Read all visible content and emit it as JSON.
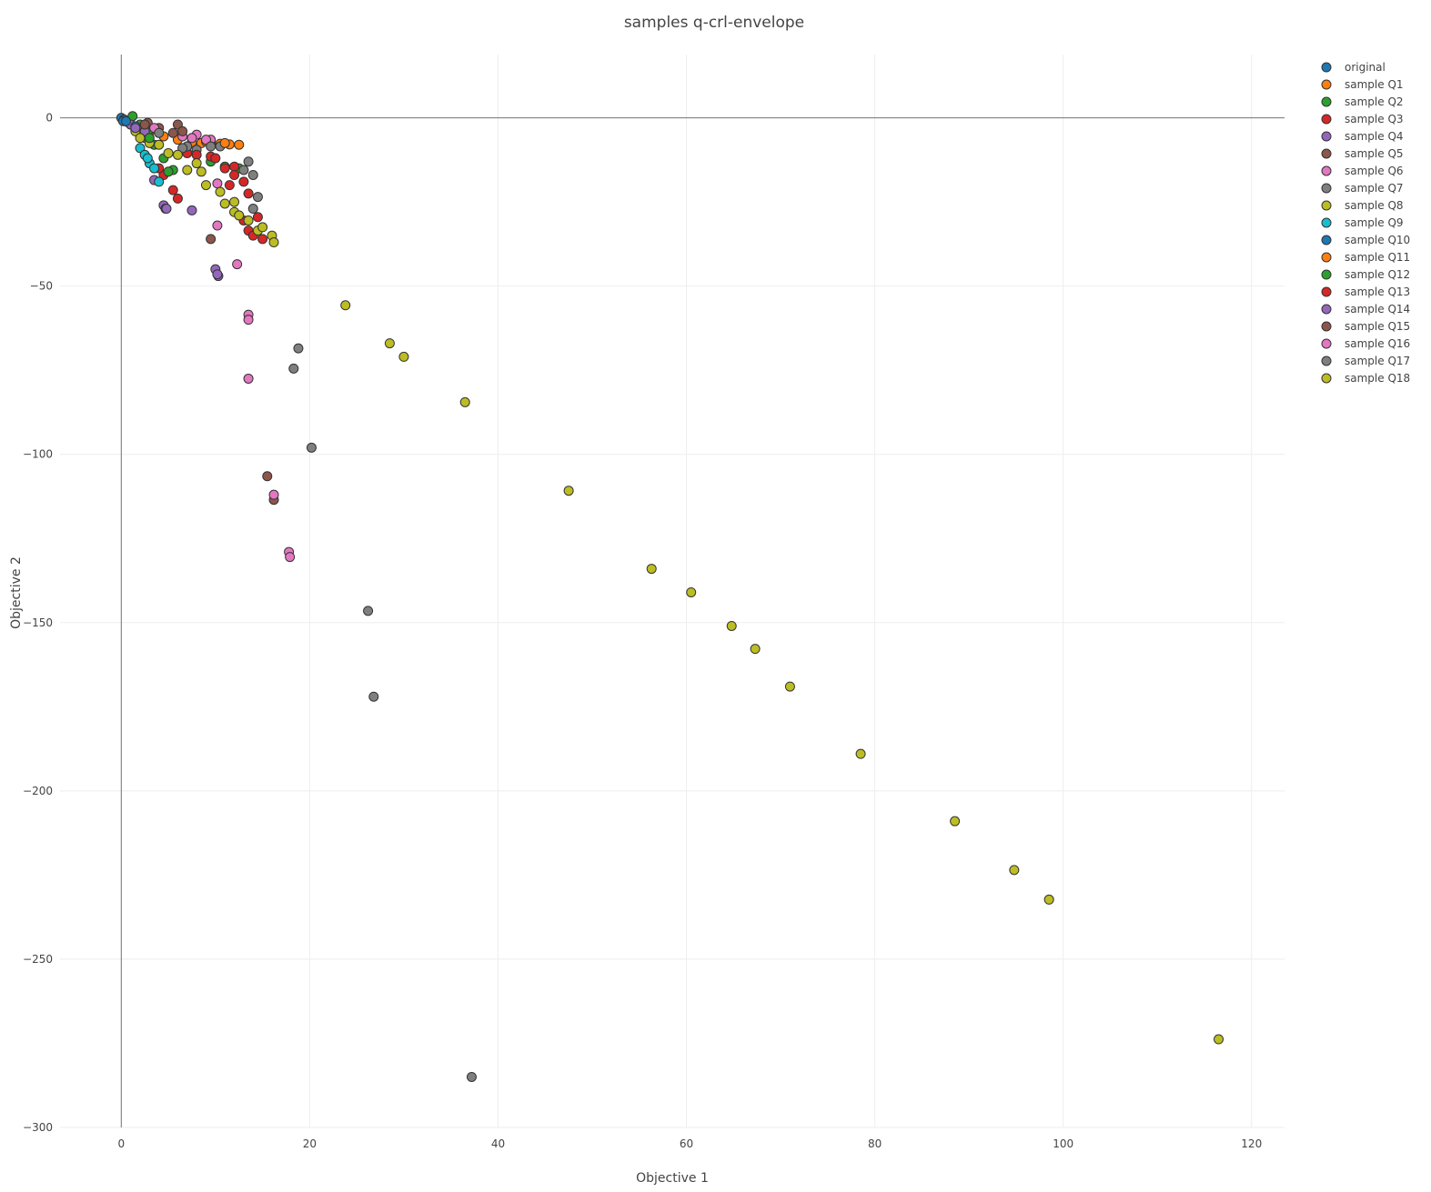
{
  "chart_data": {
    "type": "scatter",
    "title": "samples q-crl-envelope",
    "xlabel": "Objective 1",
    "ylabel": "Objective 2",
    "xlim": [
      -6.5,
      123.5
    ],
    "ylim": [
      -300,
      18.8
    ],
    "xticks": [
      0,
      20,
      40,
      60,
      80,
      100,
      120
    ],
    "yticks": [
      0,
      -50,
      -100,
      -150,
      -200,
      -250,
      -300
    ],
    "xtick_labels": [
      "0",
      "20",
      "40",
      "60",
      "80",
      "100",
      "120"
    ],
    "ytick_labels": [
      "0",
      "−50",
      "−100",
      "−150",
      "−200",
      "−250",
      "−300"
    ],
    "grid": true,
    "legend_position": "top-right",
    "series": [
      {
        "name": "original",
        "color": "#1f77b4",
        "points": [
          [
            0,
            0
          ],
          [
            0.3,
            -0.5
          ],
          [
            0.6,
            -1.2
          ],
          [
            1.0,
            -2.0
          ],
          [
            0.2,
            -1.0
          ]
        ]
      },
      {
        "name": "sample Q1",
        "color": "#ff7f0e",
        "points": [
          [
            8.5,
            -7.5
          ],
          [
            10.5,
            -7.7
          ],
          [
            11.5,
            -7.9
          ],
          [
            12.5,
            -8.0
          ],
          [
            9.5,
            -7.6
          ],
          [
            7.5,
            -7.2
          ],
          [
            6.0,
            -6.5
          ],
          [
            4.5,
            -5.5
          ],
          [
            3.0,
            -4.2
          ],
          [
            1.8,
            -3.0
          ]
        ]
      },
      {
        "name": "sample Q2",
        "color": "#2ca02c",
        "points": [
          [
            1.2,
            0.5
          ],
          [
            2.0,
            -2.0
          ],
          [
            3.0,
            -3.5
          ],
          [
            4.5,
            -12.0
          ],
          [
            5.5,
            -15.5
          ],
          [
            3.5,
            -8.0
          ],
          [
            2.5,
            -6.0
          ],
          [
            9.5,
            -13.0
          ],
          [
            11.0,
            -14.5
          ],
          [
            12.5,
            -15.0
          ]
        ]
      },
      {
        "name": "sample Q3",
        "color": "#d62728",
        "points": [
          [
            6.0,
            -24.0
          ],
          [
            5.5,
            -21.5
          ],
          [
            4.5,
            -17.0
          ],
          [
            4.0,
            -15.0
          ],
          [
            7.0,
            -10.5
          ],
          [
            9.5,
            -11.5
          ],
          [
            11.0,
            -15.0
          ],
          [
            11.5,
            -20.0
          ],
          [
            13.0,
            -19.0
          ],
          [
            13.5,
            -22.5
          ],
          [
            13.5,
            -33.5
          ],
          [
            14.0,
            -35.0
          ],
          [
            15.0,
            -36.0
          ],
          [
            13.0,
            -30.5
          ],
          [
            14.5,
            -29.5
          ],
          [
            12.0,
            -14.5
          ],
          [
            10.0,
            -12.0
          ]
        ]
      },
      {
        "name": "sample Q4",
        "color": "#9467bd",
        "points": [
          [
            3.5,
            -18.5
          ],
          [
            4.5,
            -26.0
          ],
          [
            4.7,
            -27.0
          ],
          [
            7.5,
            -27.5
          ],
          [
            10.0,
            -45.0
          ],
          [
            10.3,
            -47.0
          ],
          [
            10.2,
            -46.5
          ],
          [
            2.5,
            -4.0
          ],
          [
            1.0,
            -2.0
          ]
        ]
      },
      {
        "name": "sample Q5",
        "color": "#8c564b",
        "points": [
          [
            2.8,
            -1.5
          ],
          [
            6.0,
            -2.0
          ],
          [
            9.5,
            -36.0
          ],
          [
            15.5,
            -106.5
          ],
          [
            16.2,
            -113.5
          ],
          [
            5.5,
            -4.5
          ],
          [
            4.0,
            -3.0
          ]
        ]
      },
      {
        "name": "sample Q6",
        "color": "#e377c2",
        "points": [
          [
            6.5,
            -5.5
          ],
          [
            8.0,
            -5.0
          ],
          [
            9.5,
            -6.5
          ],
          [
            10.2,
            -19.5
          ],
          [
            10.2,
            -32.0
          ],
          [
            12.3,
            -43.5
          ],
          [
            13.5,
            -58.5
          ],
          [
            13.5,
            -60.0
          ],
          [
            13.5,
            -77.5
          ],
          [
            16.2,
            -112.0
          ],
          [
            17.8,
            -129.0
          ],
          [
            17.9,
            -130.5
          ],
          [
            3.5,
            -3.0
          ]
        ]
      },
      {
        "name": "sample Q7",
        "color": "#7f7f7f",
        "points": [
          [
            4.0,
            -4.5
          ],
          [
            7.0,
            -8.5
          ],
          [
            8.0,
            -9.5
          ],
          [
            10.5,
            -8.5
          ],
          [
            13.0,
            -15.5
          ],
          [
            13.5,
            -13.0
          ],
          [
            14.0,
            -17.0
          ],
          [
            14.5,
            -23.5
          ],
          [
            14.0,
            -27.0
          ],
          [
            18.8,
            -68.5
          ],
          [
            18.3,
            -74.5
          ],
          [
            20.2,
            -98.0
          ],
          [
            26.2,
            -146.5
          ],
          [
            26.8,
            -172.0
          ],
          [
            37.2,
            -285.0
          ]
        ]
      },
      {
        "name": "sample Q8",
        "color": "#bcbd22",
        "points": [
          [
            1.5,
            -4.0
          ],
          [
            3.0,
            -7.5
          ],
          [
            5.0,
            -10.5
          ],
          [
            7.0,
            -15.5
          ],
          [
            8.5,
            -16.0
          ],
          [
            9.0,
            -20.0
          ],
          [
            10.5,
            -22.0
          ],
          [
            11.0,
            -25.5
          ],
          [
            12.0,
            -28.0
          ],
          [
            12.5,
            -29.0
          ],
          [
            13.5,
            -30.5
          ],
          [
            14.5,
            -33.5
          ],
          [
            15.0,
            -32.5
          ],
          [
            16.0,
            -35.0
          ],
          [
            16.2,
            -37.0
          ],
          [
            12.0,
            -25.0
          ]
        ]
      },
      {
        "name": "sample Q9",
        "color": "#17becf",
        "points": [
          [
            2.0,
            -9.0
          ],
          [
            2.5,
            -11.0
          ],
          [
            3.0,
            -13.5
          ],
          [
            3.5,
            -15.0
          ],
          [
            4.0,
            -19.0
          ],
          [
            2.8,
            -12.0
          ]
        ]
      },
      {
        "name": "sample Q10",
        "color": "#1f77b4",
        "points": [
          [
            0.5,
            -1.0
          ],
          [
            1.5,
            -2.5
          ]
        ]
      },
      {
        "name": "sample Q11",
        "color": "#ff7f0e",
        "points": [
          [
            9.0,
            -7.0
          ],
          [
            11.0,
            -7.5
          ]
        ]
      },
      {
        "name": "sample Q12",
        "color": "#2ca02c",
        "points": [
          [
            3.0,
            -6.0
          ],
          [
            5.0,
            -16.0
          ]
        ]
      },
      {
        "name": "sample Q13",
        "color": "#d62728",
        "points": [
          [
            8.0,
            -11.0
          ],
          [
            12.0,
            -17.0
          ]
        ]
      },
      {
        "name": "sample Q14",
        "color": "#9467bd",
        "points": [
          [
            1.5,
            -3.0
          ],
          [
            4.8,
            -27.0
          ]
        ]
      },
      {
        "name": "sample Q15",
        "color": "#8c564b",
        "points": [
          [
            2.5,
            -2.0
          ],
          [
            6.5,
            -4.0
          ]
        ]
      },
      {
        "name": "sample Q16",
        "color": "#e377c2",
        "points": [
          [
            7.5,
            -6.0
          ],
          [
            9.0,
            -6.5
          ]
        ]
      },
      {
        "name": "sample Q17",
        "color": "#7f7f7f",
        "points": [
          [
            6.5,
            -9.0
          ],
          [
            9.5,
            -8.5
          ]
        ]
      },
      {
        "name": "sample Q18",
        "color": "#bcbd22",
        "points": [
          [
            23.8,
            -55.7
          ],
          [
            28.5,
            -67.0
          ],
          [
            30.0,
            -71.0
          ],
          [
            36.5,
            -84.5
          ],
          [
            47.5,
            -110.8
          ],
          [
            56.3,
            -134.0
          ],
          [
            60.5,
            -141.0
          ],
          [
            64.8,
            -151.0
          ],
          [
            67.3,
            -157.8
          ],
          [
            71.0,
            -169.0
          ],
          [
            78.5,
            -189.0
          ],
          [
            88.5,
            -209.0
          ],
          [
            94.8,
            -223.5
          ],
          [
            98.5,
            -232.3
          ],
          [
            116.5,
            -273.8
          ],
          [
            2.0,
            -6.0
          ],
          [
            4.0,
            -8.0
          ],
          [
            6.0,
            -11.0
          ],
          [
            8.0,
            -13.5
          ]
        ]
      }
    ]
  }
}
